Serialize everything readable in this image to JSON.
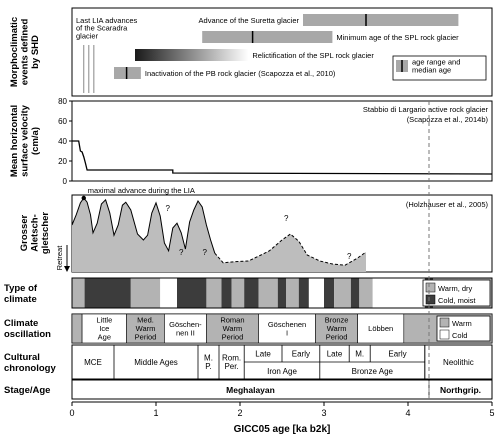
{
  "axis": {
    "xlabel": "GICC05 age [ka b2k]",
    "x_ticks": [
      "0",
      "1",
      "2",
      "3",
      "4",
      "5"
    ],
    "xlim": [
      0,
      5
    ]
  },
  "boundary_ka": 4.25,
  "panels": {
    "morpho": {
      "label_lines": [
        "Morphoclimatic",
        "events defined",
        "by SHD"
      ],
      "bars": [
        {
          "text": "Advance of the Suretta glacier",
          "start": 2.75,
          "end": 4.6,
          "median": 3.5
        },
        {
          "text": "Minimum age of the SPL rock glacier",
          "start": 1.55,
          "end": 3.1,
          "median": 2.15
        },
        {
          "text": "Relictification of the SPL rock glacier",
          "start": 0.75,
          "end": 2.1,
          "median": null,
          "gradient": true
        },
        {
          "text": "Inactivation of the PB rock glacier (Scapozza et al., 2010)",
          "start": 0.5,
          "end": 0.82,
          "median": 0.65
        }
      ],
      "lia_text_lines": [
        "Last LIA advances",
        "of the Scaradra",
        "glacier"
      ],
      "lia_lines": [
        0.14,
        0.2,
        0.26
      ],
      "legend_lines": [
        "age range and",
        "median age"
      ]
    },
    "velocity": {
      "label_lines": [
        "Mean horizontal",
        "surface velocity",
        "(cm/a)"
      ],
      "y_ticks": [
        "0",
        "20",
        "40",
        "60",
        "80"
      ],
      "ylim": [
        0,
        80
      ],
      "source_lines": [
        "Stabbio di Largario active rock glacier",
        "(Scapozza et al., 2014b)"
      ]
    },
    "aletsch": {
      "label_lines": [
        "Grosser",
        "Aletsch-",
        "gletscher"
      ],
      "retreat": "Retreat",
      "annotation": "maximal advance during the LIA",
      "source": "(Holzhauser et al., 2005)",
      "question": "?"
    },
    "climate_type": {
      "label_lines": [
        "Type of",
        "climate"
      ],
      "legend": [
        "Warm, dry",
        "Cold, moist"
      ]
    },
    "oscillation": {
      "label_lines": [
        "Climate",
        "oscillation"
      ],
      "periods": [
        {
          "lines": [
            "Little",
            "Ice",
            "Age"
          ],
          "start": 0.12,
          "end": 0.65
        },
        {
          "lines": [
            "Med.",
            "Warm",
            "Period"
          ],
          "start": 0.65,
          "end": 1.1
        },
        {
          "lines": [
            "Göschen-",
            "nen II"
          ],
          "start": 1.1,
          "end": 1.6
        },
        {
          "lines": [
            "Roman",
            "Warm",
            "Period"
          ],
          "start": 1.6,
          "end": 2.22
        },
        {
          "lines": [
            "Göschenen",
            "I"
          ],
          "start": 2.22,
          "end": 2.9
        },
        {
          "lines": [
            "Bronze",
            "Warm",
            "Period"
          ],
          "start": 2.9,
          "end": 3.4
        },
        {
          "lines": [
            "Löbben"
          ],
          "start": 3.4,
          "end": 3.95
        }
      ],
      "legend": [
        "Warm",
        "Cold"
      ]
    },
    "cultural": {
      "label_lines": [
        "Cultural",
        "chronology"
      ],
      "top": [
        {
          "lines": [
            "MCE"
          ],
          "start": 0,
          "end": 0.5
        },
        {
          "lines": [
            "Middle Ages"
          ],
          "start": 0.5,
          "end": 1.5
        },
        {
          "lines": [
            "M.",
            "P."
          ],
          "start": 1.5,
          "end": 1.75
        },
        {
          "lines": [
            "Rom.",
            "Per."
          ],
          "start": 1.75,
          "end": 2.05
        },
        {
          "lines": [
            "Late"
          ],
          "start": 2.05,
          "end": 2.5
        },
        {
          "lines": [
            "Early"
          ],
          "start": 2.5,
          "end": 2.95
        },
        {
          "lines": [
            "Late"
          ],
          "start": 2.95,
          "end": 3.3
        },
        {
          "lines": [
            "M."
          ],
          "start": 3.3,
          "end": 3.55
        },
        {
          "lines": [
            "Early"
          ],
          "start": 3.55,
          "end": 4.2
        },
        {
          "lines": [
            "Neolithic"
          ],
          "start": 4.2,
          "end": 5.0
        }
      ],
      "bottom": [
        {
          "text": "Iron Age",
          "start": 2.05,
          "end": 2.95
        },
        {
          "text": "Bronze Age",
          "start": 2.95,
          "end": 4.2
        }
      ]
    },
    "stage": {
      "label": "Stage/Age",
      "items": [
        {
          "text": "Meghalayan",
          "start": 0,
          "end": 4.25
        },
        {
          "text": "Northgrip.",
          "start": 4.25,
          "end": 5.0
        }
      ]
    }
  },
  "chart_data": {
    "type": "line",
    "title": "",
    "xlabel": "GICC05 age [ka b2k]",
    "ylabel": "Mean horizontal surface velocity (cm/a)",
    "xlim": [
      0,
      5
    ],
    "ylim": [
      0,
      80
    ],
    "x": [
      0.0,
      0.08,
      0.1,
      0.12,
      0.14,
      0.16,
      0.18,
      1.2,
      1.2,
      5.0
    ],
    "y": [
      40,
      40,
      30,
      29,
      24,
      18,
      11,
      11,
      8,
      7
    ],
    "series": [
      {
        "name": "Stabbio di Largario active rock glacier",
        "x": [
          0.0,
          0.08,
          0.1,
          0.12,
          0.14,
          0.16,
          0.18,
          1.2,
          1.2,
          5.0
        ],
        "y": [
          40,
          40,
          30,
          29,
          24,
          18,
          11,
          11,
          8,
          7
        ]
      }
    ],
    "climate_type": [
      {
        "start": 0.0,
        "end": 0.15,
        "value": "Warm, dry"
      },
      {
        "start": 0.15,
        "end": 0.7,
        "value": "Cold, moist"
      },
      {
        "start": 0.7,
        "end": 1.05,
        "value": "Warm, dry"
      },
      {
        "start": 1.05,
        "end": 1.25,
        "value": ""
      },
      {
        "start": 1.25,
        "end": 1.6,
        "value": "Cold, moist"
      },
      {
        "start": 1.6,
        "end": 1.78,
        "value": "Warm, dry"
      },
      {
        "start": 1.78,
        "end": 1.9,
        "value": "Cold, moist"
      },
      {
        "start": 1.9,
        "end": 2.05,
        "value": "Warm, dry"
      },
      {
        "start": 2.05,
        "end": 2.22,
        "value": "Cold, moist"
      },
      {
        "start": 2.22,
        "end": 2.45,
        "value": "Warm, dry"
      },
      {
        "start": 2.45,
        "end": 2.55,
        "value": "Cold, moist"
      },
      {
        "start": 2.55,
        "end": 2.7,
        "value": "Warm, dry"
      },
      {
        "start": 2.7,
        "end": 2.82,
        "value": "Cold, moist"
      },
      {
        "start": 2.82,
        "end": 3.0,
        "value": ""
      },
      {
        "start": 3.0,
        "end": 3.12,
        "value": "Cold, moist"
      },
      {
        "start": 3.12,
        "end": 3.32,
        "value": "Warm, dry"
      },
      {
        "start": 3.32,
        "end": 3.42,
        "value": "Cold, moist"
      },
      {
        "start": 3.42,
        "end": 3.58,
        "value": "Warm, dry"
      },
      {
        "start": 3.58,
        "end": 4.2,
        "value": ""
      },
      {
        "start": 4.2,
        "end": 4.3,
        "value": "Cold, moist"
      },
      {
        "start": 4.3,
        "end": 4.6,
        "value": "Warm, dry"
      },
      {
        "start": 4.6,
        "end": 5.0,
        "value": "Warm, dry"
      }
    ],
    "climate_oscillation": [
      {
        "start": 0.0,
        "end": 0.12,
        "value": "Warm"
      },
      {
        "start": 0.12,
        "end": 0.65,
        "value": "Cold"
      },
      {
        "start": 0.65,
        "end": 1.1,
        "value": "Warm"
      },
      {
        "start": 1.1,
        "end": 1.6,
        "value": "Cold"
      },
      {
        "start": 1.6,
        "end": 2.22,
        "value": "Warm"
      },
      {
        "start": 2.22,
        "end": 2.9,
        "value": "Cold"
      },
      {
        "start": 2.9,
        "end": 3.4,
        "value": "Warm"
      },
      {
        "start": 3.4,
        "end": 3.95,
        "value": "Cold"
      },
      {
        "start": 3.95,
        "end": 5.0,
        "value": "Warm"
      }
    ],
    "aletsch_profile": [
      [
        0.0,
        0.55
      ],
      [
        0.05,
        0.72
      ],
      [
        0.1,
        0.92
      ],
      [
        0.14,
        1.0
      ],
      [
        0.18,
        0.93
      ],
      [
        0.22,
        0.72
      ],
      [
        0.25,
        0.42
      ],
      [
        0.3,
        0.58
      ],
      [
        0.35,
        0.9
      ],
      [
        0.4,
        0.97
      ],
      [
        0.45,
        0.75
      ],
      [
        0.5,
        0.38
      ],
      [
        0.55,
        0.55
      ],
      [
        0.6,
        0.88
      ],
      [
        0.64,
        0.93
      ],
      [
        0.7,
        0.8
      ],
      [
        0.78,
        0.4
      ],
      [
        0.85,
        0.3
      ],
      [
        0.9,
        0.38
      ],
      [
        0.95,
        0.75
      ],
      [
        1.0,
        0.92
      ],
      [
        1.05,
        0.7
      ],
      [
        1.1,
        0.25
      ],
      [
        1.15,
        0.12
      ],
      [
        1.2,
        0.5
      ],
      [
        1.25,
        0.58
      ],
      [
        1.3,
        0.42
      ],
      [
        1.35,
        0.15
      ],
      [
        1.4,
        0.6
      ],
      [
        1.45,
        0.8
      ],
      [
        1.5,
        0.95
      ],
      [
        1.55,
        0.85
      ],
      [
        1.6,
        0.55
      ],
      [
        1.65,
        0.3
      ],
      [
        1.7,
        0.08
      ],
      [
        1.8,
        -0.08
      ],
      [
        1.95,
        -0.06
      ],
      [
        2.1,
        -0.05
      ],
      [
        2.25,
        0.05
      ],
      [
        2.35,
        0.12
      ],
      [
        2.5,
        0.3
      ],
      [
        2.6,
        0.4
      ],
      [
        2.7,
        0.28
      ],
      [
        2.8,
        0.05
      ],
      [
        2.95,
        -0.05
      ],
      [
        3.1,
        -0.1
      ],
      [
        3.25,
        -0.12
      ],
      [
        3.4,
        0.0
      ],
      [
        3.5,
        0.1
      ]
    ]
  }
}
